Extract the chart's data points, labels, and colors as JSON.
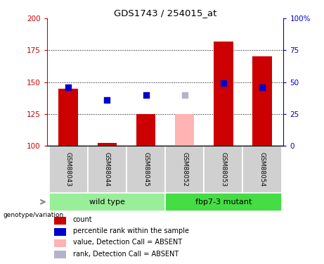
{
  "title": "GDS1743 / 254015_at",
  "samples": [
    "GSM88043",
    "GSM88044",
    "GSM88045",
    "GSM88052",
    "GSM88053",
    "GSM88054"
  ],
  "bar_values": [
    145,
    102,
    125,
    125,
    182,
    170
  ],
  "bar_colors": [
    "#cc0000",
    "#cc0000",
    "#cc0000",
    "#ffb3b3",
    "#cc0000",
    "#cc0000"
  ],
  "dot_values": [
    46,
    36,
    40,
    40,
    49,
    46
  ],
  "dot_colors": [
    "#0000cc",
    "#0000cc",
    "#0000cc",
    "#b3b3cc",
    "#0000cc",
    "#0000cc"
  ],
  "ymin": 100,
  "ymax": 200,
  "y2min": 0,
  "y2max": 100,
  "yticks": [
    100,
    125,
    150,
    175,
    200
  ],
  "y2ticks": [
    0,
    25,
    50,
    75,
    100
  ],
  "hlines": [
    125,
    150,
    175
  ],
  "bar_width": 0.5,
  "dot_size": 40,
  "background_color": "#ffffff",
  "legend_items": [
    {
      "label": "count",
      "color": "#cc0000"
    },
    {
      "label": "percentile rank within the sample",
      "color": "#0000cc"
    },
    {
      "label": "value, Detection Call = ABSENT",
      "color": "#ffb3b3"
    },
    {
      "label": "rank, Detection Call = ABSENT",
      "color": "#b3b3cc"
    }
  ],
  "genotype_label": "genotype/variation",
  "group1_label": "wild type",
  "group2_label": "fbp7-3 mutant",
  "group1_color": "#99ee99",
  "group2_color": "#44dd44",
  "sample_box_color": "#d0d0d0"
}
